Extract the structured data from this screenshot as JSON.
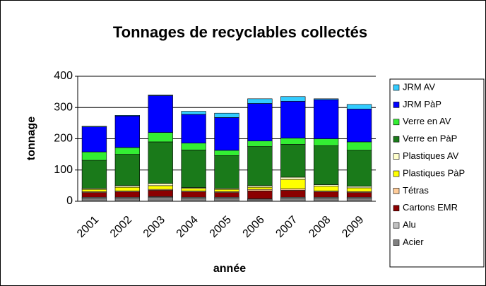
{
  "chart_data": {
    "type": "stacked_bar",
    "title": "Tonnages de recyclables collectés",
    "x_label": "année",
    "y_label": "tonnage",
    "categories": [
      "2001",
      "2002",
      "2003",
      "2004",
      "2005",
      "2006",
      "2007",
      "2008",
      "2009"
    ],
    "ylim": [
      0,
      400
    ],
    "yticks": [
      0,
      100,
      200,
      300,
      400
    ],
    "grid": true,
    "legend": "right",
    "series": [
      {
        "name": "Acier",
        "color": "#808080",
        "values": [
          10,
          10,
          12,
          10,
          10,
          5,
          10,
          10,
          10
        ]
      },
      {
        "name": "Alu",
        "color": "#c0c0c0",
        "values": [
          3,
          3,
          3,
          3,
          3,
          3,
          3,
          3,
          3
        ]
      },
      {
        "name": "Cartons EMR",
        "color": "#8b0000",
        "values": [
          15,
          17,
          20,
          17,
          15,
          25,
          22,
          17,
          15
        ]
      },
      {
        "name": "Tétras",
        "color": "#ffcc99",
        "values": [
          3,
          3,
          3,
          3,
          3,
          5,
          5,
          3,
          3
        ]
      },
      {
        "name": "Plastiques PàP",
        "color": "#ffff00",
        "values": [
          7,
          12,
          12,
          8,
          7,
          7,
          30,
          15,
          12
        ]
      },
      {
        "name": "Plastiques AV",
        "color": "#ffffcc",
        "values": [
          3,
          5,
          7,
          3,
          3,
          5,
          7,
          5,
          5
        ]
      },
      {
        "name": "Verre en PàP",
        "color": "#1a7a1a",
        "values": [
          90,
          100,
          133,
          120,
          105,
          125,
          105,
          125,
          115
        ]
      },
      {
        "name": "Verre en AV",
        "color": "#33ee33",
        "values": [
          27,
          22,
          30,
          22,
          17,
          18,
          20,
          22,
          27
        ]
      },
      {
        "name": "JRM PàP",
        "color": "#0000ff",
        "values": [
          80,
          101,
          118,
          92,
          105,
          120,
          118,
          125,
          105
        ]
      },
      {
        "name": "JRM AV",
        "color": "#33ccff",
        "values": [
          2,
          2,
          2,
          10,
          14,
          15,
          15,
          3,
          15
        ]
      }
    ]
  }
}
